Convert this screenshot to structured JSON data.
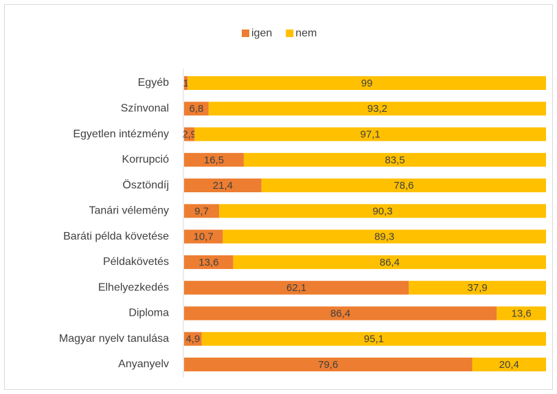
{
  "chart_data": {
    "type": "stacked-bar-horizontal",
    "categories": [
      "Egyéb",
      "Színvonal",
      "Egyetlen intézmény",
      "Korrupció",
      "Ösztöndíj",
      "Tanári vélemény",
      "Baráti példa követése",
      "Példakövetés",
      "Elhelyezkedés",
      "Diploma",
      "Magyar nyelv tanulása",
      "Anyanyelv"
    ],
    "series": [
      {
        "name": "igen",
        "color": "#ED7D31",
        "values": [
          1,
          6.8,
          2.9,
          16.5,
          21.4,
          9.7,
          10.7,
          13.6,
          62.1,
          86.4,
          4.9,
          79.6
        ],
        "value_labels": [
          "1",
          "6,8",
          "2,9",
          "16,5",
          "21,4",
          "9,7",
          "10,7",
          "13,6",
          "62,1",
          "86,4",
          "4,9",
          "79,6"
        ]
      },
      {
        "name": "nem",
        "color": "#FFC000",
        "values": [
          99,
          93.2,
          97.1,
          83.5,
          78.6,
          90.3,
          89.3,
          86.4,
          37.9,
          13.6,
          95.1,
          20.4
        ],
        "value_labels": [
          "99",
          "93,2",
          "97,1",
          "83,5",
          "78,6",
          "90,3",
          "89,3",
          "86,4",
          "37,9",
          "13,6",
          "95,1",
          "20,4"
        ]
      }
    ],
    "xlim": [
      0,
      100
    ],
    "legend": "top"
  }
}
